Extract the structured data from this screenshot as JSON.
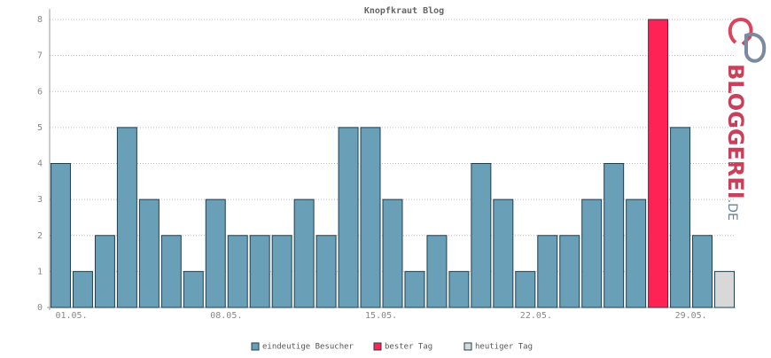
{
  "chart_data": {
    "type": "bar",
    "title": "Knopfkraut Blog",
    "categories": [
      "01.05.",
      null,
      null,
      null,
      null,
      null,
      null,
      "08.05.",
      null,
      null,
      null,
      null,
      null,
      null,
      "15.05.",
      null,
      null,
      null,
      null,
      null,
      null,
      "22.05.",
      null,
      null,
      null,
      null,
      null,
      null,
      "29.05.",
      null,
      null
    ],
    "series": [
      {
        "name": "eindeutige Besucher",
        "color": "#6a9fb8",
        "values": [
          4,
          1,
          2,
          5,
          3,
          2,
          1,
          3,
          2,
          2,
          2,
          3,
          2,
          5,
          5,
          3,
          1,
          2,
          1,
          4,
          3,
          1,
          2,
          2,
          3,
          4,
          3,
          null,
          5,
          2,
          null
        ]
      },
      {
        "name": "bester Tag",
        "color": "#ff2255",
        "values": [
          null,
          null,
          null,
          null,
          null,
          null,
          null,
          null,
          null,
          null,
          null,
          null,
          null,
          null,
          null,
          null,
          null,
          null,
          null,
          null,
          null,
          null,
          null,
          null,
          null,
          null,
          null,
          8,
          null,
          null,
          null
        ]
      },
      {
        "name": "heutiger Tag",
        "color": "#d8d8d8",
        "values": [
          null,
          null,
          null,
          null,
          null,
          null,
          null,
          null,
          null,
          null,
          null,
          null,
          null,
          null,
          null,
          null,
          null,
          null,
          null,
          null,
          null,
          null,
          null,
          null,
          null,
          null,
          null,
          null,
          null,
          null,
          1
        ]
      }
    ],
    "ylim": [
      0,
      8
    ],
    "yticks": [
      0,
      1,
      2,
      3,
      4,
      5,
      6,
      7,
      8
    ],
    "grid": true
  },
  "logo": {
    "main": "BLOGGEREI",
    "suffix": ".DE"
  }
}
